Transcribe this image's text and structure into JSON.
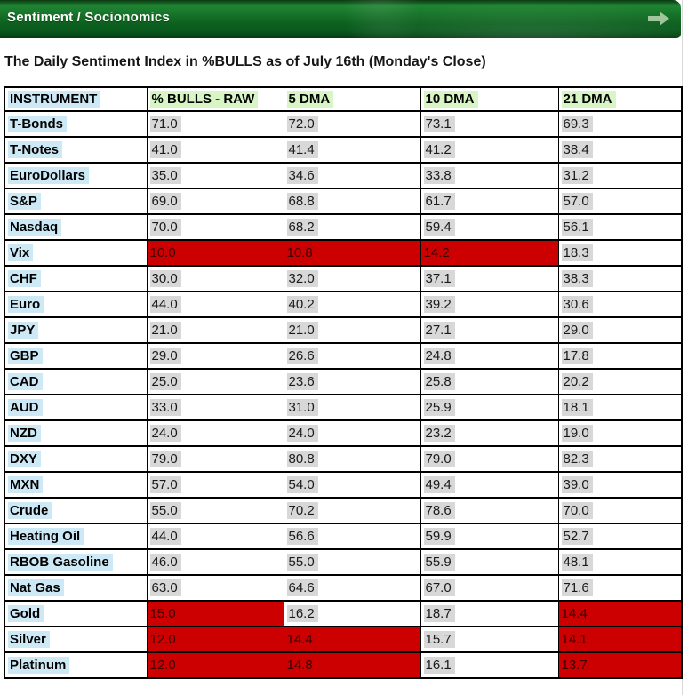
{
  "topbar": {
    "label": "Sentiment / Socionomics",
    "arrow_icon": "forward-arrow"
  },
  "page": {
    "title": "The Daily Sentiment Index in %BULLS as of July 16th (Monday's Close)"
  },
  "colors": {
    "bar_green_light": "#1f8433",
    "bar_green_dark": "#074515",
    "header_highlight_green": "#d7f5c5",
    "instrument_highlight_blue": "#cde9f6",
    "value_highlight_gray": "#d8d8d8",
    "alert_red": "#cc0000",
    "alert_text": "#3d0000",
    "table_border": "#000000"
  },
  "table": {
    "columns": [
      "INSTRUMENT",
      "% BULLS - RAW",
      "5 DMA",
      "10 DMA",
      "21 DMA"
    ],
    "rows": [
      {
        "instrument": "T-Bonds",
        "values": [
          "71.0",
          "72.0",
          "73.1",
          "69.3"
        ],
        "red": []
      },
      {
        "instrument": "T-Notes",
        "values": [
          "41.0",
          "41.4",
          "41.2",
          "38.4"
        ],
        "red": []
      },
      {
        "instrument": "EuroDollars",
        "values": [
          "35.0",
          "34.6",
          "33.8",
          "31.2"
        ],
        "red": []
      },
      {
        "instrument": "S&P",
        "values": [
          "69.0",
          "68.8",
          "61.7",
          "57.0"
        ],
        "red": []
      },
      {
        "instrument": "Nasdaq",
        "values": [
          "70.0",
          "68.2",
          "59.4",
          "56.1"
        ],
        "red": []
      },
      {
        "instrument": "Vix",
        "values": [
          "10.0",
          "10.8",
          "14.2",
          "18.3"
        ],
        "red": [
          0,
          1,
          2
        ]
      },
      {
        "instrument": "CHF",
        "values": [
          "30.0",
          "32.0",
          "37.1",
          "38.3"
        ],
        "red": []
      },
      {
        "instrument": "Euro",
        "values": [
          "44.0",
          "40.2",
          "39.2",
          "30.6"
        ],
        "red": []
      },
      {
        "instrument": "JPY",
        "values": [
          "21.0",
          "21.0",
          "27.1",
          "29.0"
        ],
        "red": []
      },
      {
        "instrument": "GBP",
        "values": [
          "29.0",
          "26.6",
          "24.8",
          "17.8"
        ],
        "red": []
      },
      {
        "instrument": "CAD",
        "values": [
          "25.0",
          "23.6",
          "25.8",
          "20.2"
        ],
        "red": []
      },
      {
        "instrument": "AUD",
        "values": [
          "33.0",
          "31.0",
          "25.9",
          "18.1"
        ],
        "red": []
      },
      {
        "instrument": "NZD",
        "values": [
          "24.0",
          "24.0",
          "23.2",
          "19.0"
        ],
        "red": []
      },
      {
        "instrument": "DXY",
        "values": [
          "79.0",
          "80.8",
          "79.0",
          "82.3"
        ],
        "red": []
      },
      {
        "instrument": "MXN",
        "values": [
          "57.0",
          "54.0",
          "49.4",
          "39.0"
        ],
        "red": []
      },
      {
        "instrument": "Crude",
        "values": [
          "55.0",
          "70.2",
          "78.6",
          "70.0"
        ],
        "red": []
      },
      {
        "instrument": "Heating Oil",
        "values": [
          "44.0",
          "56.6",
          "59.9",
          "52.7"
        ],
        "red": []
      },
      {
        "instrument": "RBOB Gasoline",
        "values": [
          "46.0",
          "55.0",
          "55.9",
          "48.1"
        ],
        "red": []
      },
      {
        "instrument": "Nat Gas",
        "values": [
          "63.0",
          "64.6",
          "67.0",
          "71.6"
        ],
        "red": []
      },
      {
        "instrument": "Gold",
        "values": [
          "15.0",
          "16.2",
          "18.7",
          "14.4"
        ],
        "red": [
          0,
          3
        ]
      },
      {
        "instrument": "Silver",
        "values": [
          "12.0",
          "14.4",
          "15.7",
          "14.1"
        ],
        "red": [
          0,
          1,
          3
        ]
      },
      {
        "instrument": "Platinum",
        "values": [
          "12.0",
          "14.8",
          "16.1",
          "13.7"
        ],
        "red": [
          0,
          1,
          3
        ]
      }
    ]
  }
}
